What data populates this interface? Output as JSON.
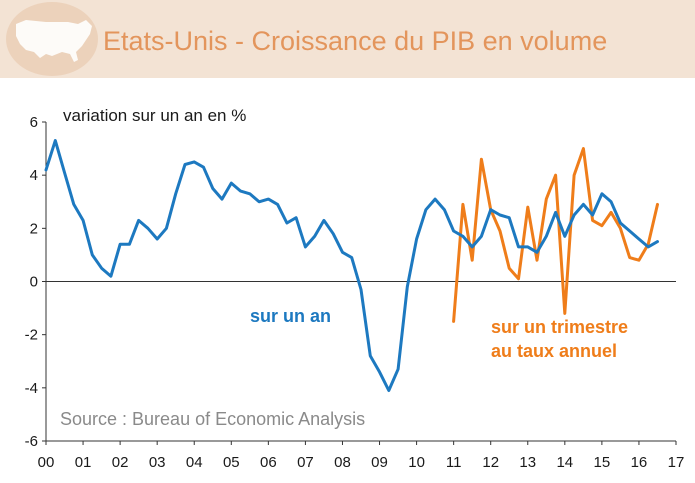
{
  "header": {
    "title": "Etats-Unis - Croissance du PIB en volume",
    "icon": "usa-map-icon"
  },
  "chart_data": {
    "type": "line",
    "title": "Etats-Unis - Croissance du PIB en volume",
    "ylabel": "variation sur un an en %",
    "source": "Source : Bureau of Economic Analysis",
    "ylim": [
      -6,
      6
    ],
    "yticks": [
      6,
      4,
      2,
      0,
      -2,
      -4,
      -6
    ],
    "xlim": [
      2000,
      2017
    ],
    "xtick_labels": [
      "00",
      "01",
      "02",
      "03",
      "04",
      "05",
      "06",
      "07",
      "08",
      "09",
      "10",
      "11",
      "12",
      "13",
      "14",
      "15",
      "16",
      "17"
    ],
    "series": [
      {
        "name": "sur un an",
        "color": "#1d79c0",
        "x": [
          2000.0,
          2000.25,
          2000.5,
          2000.75,
          2001.0,
          2001.25,
          2001.5,
          2001.75,
          2002.0,
          2002.25,
          2002.5,
          2002.75,
          2003.0,
          2003.25,
          2003.5,
          2003.75,
          2004.0,
          2004.25,
          2004.5,
          2004.75,
          2005.0,
          2005.25,
          2005.5,
          2005.75,
          2006.0,
          2006.25,
          2006.5,
          2006.75,
          2007.0,
          2007.25,
          2007.5,
          2007.75,
          2008.0,
          2008.25,
          2008.5,
          2008.75,
          2009.0,
          2009.25,
          2009.5,
          2009.75,
          2010.0,
          2010.25,
          2010.5,
          2010.75,
          2011.0,
          2011.25,
          2011.5,
          2011.75,
          2012.0,
          2012.25,
          2012.5,
          2012.75,
          2013.0,
          2013.25,
          2013.5,
          2013.75,
          2014.0,
          2014.25,
          2014.5,
          2014.75,
          2015.0,
          2015.25,
          2015.5,
          2015.75,
          2016.0,
          2016.25,
          2016.5
        ],
        "values": [
          4.2,
          5.3,
          4.1,
          2.9,
          2.3,
          1.0,
          0.5,
          0.2,
          1.4,
          1.4,
          2.3,
          2.0,
          1.6,
          2.0,
          3.3,
          4.4,
          4.5,
          4.3,
          3.5,
          3.1,
          3.7,
          3.4,
          3.3,
          3.0,
          3.1,
          2.9,
          2.2,
          2.4,
          1.3,
          1.7,
          2.3,
          1.8,
          1.1,
          0.9,
          -0.3,
          -2.8,
          -3.4,
          -4.1,
          -3.3,
          -0.2,
          1.6,
          2.7,
          3.1,
          2.7,
          1.9,
          1.7,
          1.3,
          1.7,
          2.7,
          2.5,
          2.4,
          1.3,
          1.3,
          1.1,
          1.7,
          2.6,
          1.7,
          2.5,
          2.9,
          2.5,
          3.3,
          3.0,
          2.2,
          1.9,
          1.6,
          1.3,
          1.5
        ]
      },
      {
        "name": "sur un trimestre au taux annuel",
        "label_line1": "sur un trimestre",
        "label_line2": "au taux annuel",
        "color": "#ef7d1a",
        "x": [
          2011.0,
          2011.25,
          2011.5,
          2011.75,
          2012.0,
          2012.25,
          2012.5,
          2012.75,
          2013.0,
          2013.25,
          2013.5,
          2013.75,
          2014.0,
          2014.25,
          2014.5,
          2014.75,
          2015.0,
          2015.25,
          2015.5,
          2015.75,
          2016.0,
          2016.25,
          2016.5
        ],
        "values": [
          -1.5,
          2.9,
          0.8,
          4.6,
          2.7,
          1.9,
          0.5,
          0.1,
          2.8,
          0.8,
          3.1,
          4.0,
          -1.2,
          4.0,
          5.0,
          2.3,
          2.1,
          2.6,
          2.0,
          0.9,
          0.8,
          1.4,
          2.9
        ]
      }
    ]
  }
}
